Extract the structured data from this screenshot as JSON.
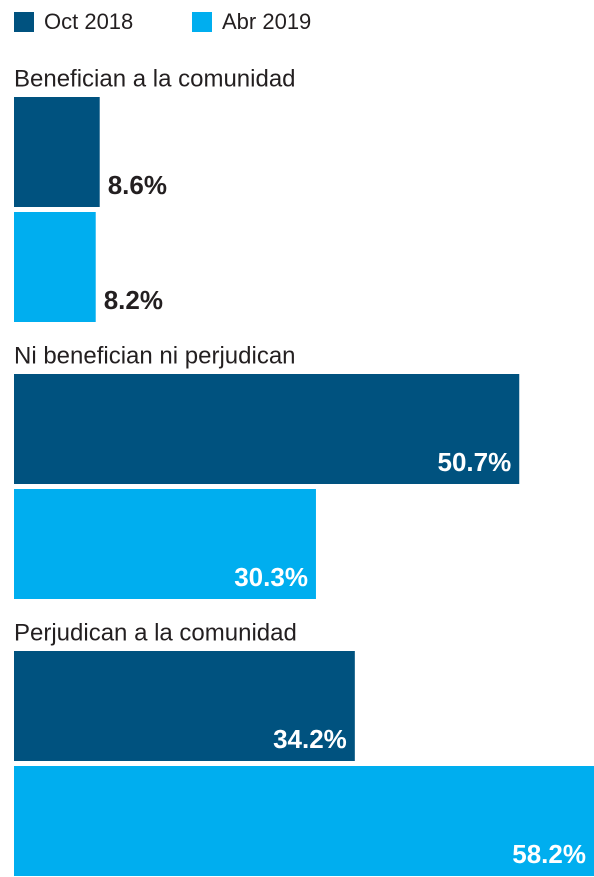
{
  "chart_data": {
    "type": "bar",
    "orientation": "horizontal",
    "categories": [
      "Benefician a la comunidad",
      "Ni benefician ni perjudican",
      "Perjudican a la comunidad"
    ],
    "series": [
      {
        "name": "Oct 2018",
        "color": "#00527f",
        "values": [
          8.6,
          50.7,
          34.2
        ],
        "value_labels": [
          "8.6%",
          "50.7%",
          "34.2%"
        ]
      },
      {
        "name": "Abr 2019",
        "color": "#00aeef",
        "values": [
          8.2,
          30.3,
          58.2
        ],
        "value_labels": [
          "8.2%",
          "30.3%",
          "58.2%"
        ]
      }
    ],
    "legend": "top-left"
  }
}
